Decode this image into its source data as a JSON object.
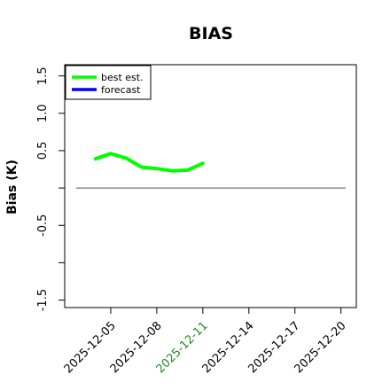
{
  "chart_data": {
    "type": "line",
    "title": "BIAS",
    "xlabel": "",
    "ylabel": "Bias (K)",
    "ylim": [
      -1.6,
      1.65
    ],
    "yticks": [
      -1.5,
      -1.0,
      -0.5,
      0.0,
      0.5,
      1.0,
      1.5
    ],
    "ytick_labels": [
      "-1.5",
      "",
      "-0.5",
      "",
      "0.5",
      "1.0",
      "1.5"
    ],
    "x_range": [
      "2025-12-02",
      "2025-12-21"
    ],
    "xticks": [
      {
        "date": "2025-12-05",
        "label": "2025-12-05",
        "color": "#000000"
      },
      {
        "date": "2025-12-08",
        "label": "2025-12-08",
        "color": "#000000"
      },
      {
        "date": "2025-12-11",
        "label": "2025-12-11",
        "color": "#228B22"
      },
      {
        "date": "2025-12-14",
        "label": "2025-12-14",
        "color": "#000000"
      },
      {
        "date": "2025-12-17",
        "label": "2025-12-17",
        "color": "#000000"
      },
      {
        "date": "2025-12-20",
        "label": "2025-12-20",
        "color": "#000000"
      }
    ],
    "reference_line": {
      "y": 0.0,
      "color": "#555555"
    },
    "legend": {
      "position": "top-left"
    },
    "series": [
      {
        "name": "best est.",
        "color": "#00ff00",
        "x": [
          "2025-12-04",
          "2025-12-05",
          "2025-12-06",
          "2025-12-07",
          "2025-12-08",
          "2025-12-09",
          "2025-12-10",
          "2025-12-11"
        ],
        "values": [
          0.39,
          0.46,
          0.4,
          0.28,
          0.26,
          0.23,
          0.24,
          0.33
        ]
      },
      {
        "name": "forecast",
        "color": "#0000ff",
        "x": [],
        "values": []
      }
    ]
  }
}
